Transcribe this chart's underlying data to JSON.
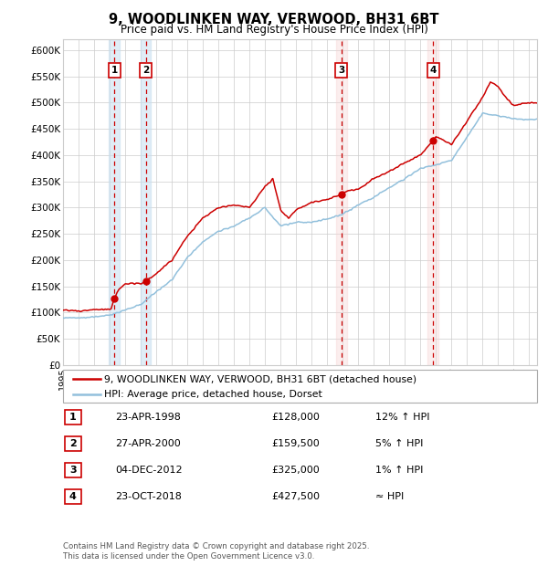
{
  "title_line1": "9, WOODLINKEN WAY, VERWOOD, BH31 6BT",
  "title_line2": "Price paid vs. HM Land Registry's House Price Index (HPI)",
  "ylim": [
    0,
    620000
  ],
  "yticks": [
    0,
    50000,
    100000,
    150000,
    200000,
    250000,
    300000,
    350000,
    400000,
    450000,
    500000,
    550000,
    600000
  ],
  "ytick_labels": [
    "£0",
    "£50K",
    "£100K",
    "£150K",
    "£200K",
    "£250K",
    "£300K",
    "£350K",
    "£400K",
    "£450K",
    "£500K",
    "£550K",
    "£600K"
  ],
  "legend_line1": "9, WOODLINKEN WAY, VERWOOD, BH31 6BT (detached house)",
  "legend_line2": "HPI: Average price, detached house, Dorset",
  "line1_color": "#cc0000",
  "line2_color": "#92c0dc",
  "transactions": [
    {
      "num": 1,
      "date": "23-APR-1998",
      "price": "128,000",
      "note": "12% ↑ HPI",
      "year": 1998.31
    },
    {
      "num": 2,
      "date": "27-APR-2000",
      "price": "159,500",
      "note": "5% ↑ HPI",
      "year": 2000.32
    },
    {
      "num": 3,
      "date": "04-DEC-2012",
      "price": "325,000",
      "note": "1% ↑ HPI",
      "year": 2012.92
    },
    {
      "num": 4,
      "date": "23-OCT-2018",
      "price": "427,500",
      "note": "≈ HPI",
      "year": 2018.81
    }
  ],
  "footer": "Contains HM Land Registry data © Crown copyright and database right 2025.\nThis data is licensed under the Open Government Licence v3.0.",
  "bg_color": "#ffffff",
  "grid_color": "#cccccc",
  "hpi_anchors_x": [
    1995,
    1996,
    1997,
    1998,
    1999,
    2000,
    2001,
    2002,
    2003,
    2004,
    2005,
    2006,
    2007,
    2008,
    2009,
    2010,
    2011,
    2012,
    2013,
    2014,
    2015,
    2016,
    2017,
    2018,
    2019,
    2020,
    2021,
    2022,
    2023,
    2024,
    2025
  ],
  "hpi_anchors_y": [
    90000,
    90000,
    92000,
    95000,
    105000,
    115000,
    140000,
    162000,
    205000,
    235000,
    255000,
    265000,
    280000,
    300000,
    265000,
    272000,
    272000,
    278000,
    288000,
    305000,
    320000,
    338000,
    355000,
    375000,
    382000,
    390000,
    435000,
    480000,
    475000,
    470000,
    468000
  ],
  "price_anchors_x": [
    1995,
    1996,
    1997,
    1998.1,
    1998.31,
    1998.6,
    1999,
    2000.1,
    2000.32,
    2000.6,
    2001,
    2002,
    2003,
    2004,
    2005,
    2006,
    2007,
    2008,
    2008.5,
    2009,
    2009.5,
    2010,
    2011,
    2012,
    2012.92,
    2013,
    2014,
    2015,
    2016,
    2017,
    2018,
    2018.81,
    2019,
    2020,
    2021,
    2022,
    2022.5,
    2023,
    2023.5,
    2024,
    2025
  ],
  "price_anchors_y": [
    105000,
    103000,
    105000,
    107000,
    128000,
    145000,
    155000,
    155000,
    159500,
    165000,
    175000,
    200000,
    245000,
    280000,
    300000,
    305000,
    300000,
    340000,
    355000,
    295000,
    280000,
    295000,
    310000,
    315000,
    325000,
    330000,
    335000,
    355000,
    370000,
    385000,
    400000,
    427500,
    435000,
    420000,
    465000,
    510000,
    540000,
    530000,
    510000,
    495000,
    500000
  ]
}
